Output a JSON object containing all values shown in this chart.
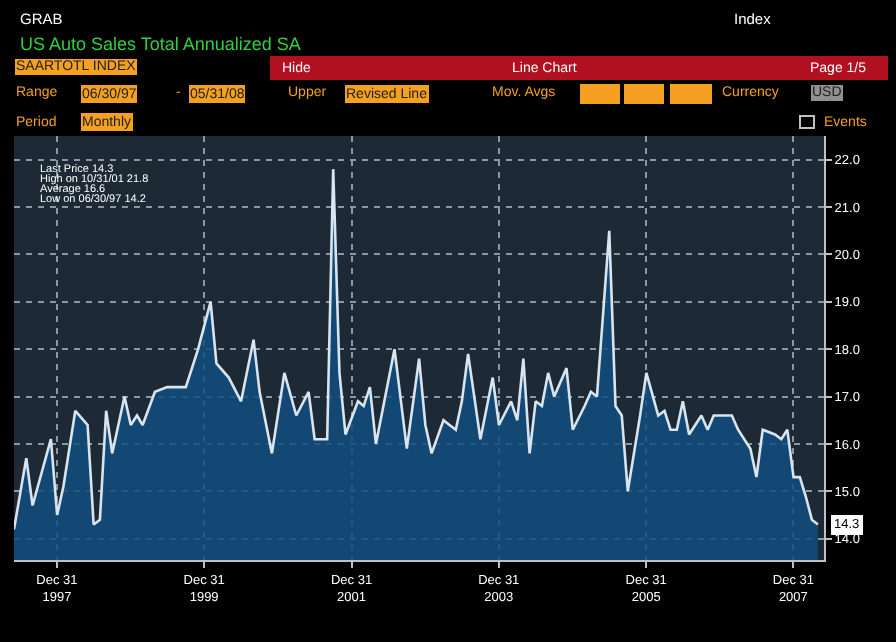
{
  "chart_data": {
    "type": "area",
    "title": "US Auto Sales Total Annualized SA",
    "x": [
      "1997-06",
      "1997-08",
      "1997-09",
      "1997-12",
      "1998-01",
      "1998-02",
      "1998-04",
      "1998-06",
      "1998-07",
      "1998-08",
      "1998-09",
      "1998-10",
      "1998-12",
      "1999-01",
      "1999-02",
      "1999-03",
      "1999-05",
      "1999-07",
      "1999-10",
      "1999-12",
      "2000-02",
      "2000-03",
      "2000-05",
      "2000-07",
      "2000-09",
      "2000-10",
      "2000-12",
      "2001-02",
      "2001-04",
      "2001-06",
      "2001-07",
      "2001-09",
      "2001-10",
      "2001-11",
      "2001-12",
      "2002-02",
      "2002-03",
      "2002-04",
      "2002-05",
      "2002-08",
      "2002-10",
      "2002-12",
      "2003-01",
      "2003-02",
      "2003-04",
      "2003-05",
      "2003-06",
      "2003-07",
      "2003-08",
      "2003-10",
      "2003-12",
      "2004-01",
      "2004-03",
      "2004-04",
      "2004-05",
      "2004-06",
      "2004-07",
      "2004-08",
      "2004-09",
      "2004-10",
      "2004-12",
      "2005-01",
      "2005-03",
      "2005-04",
      "2005-05",
      "2005-07",
      "2005-08",
      "2005-09",
      "2005-10",
      "2005-12",
      "2006-01",
      "2006-03",
      "2006-04",
      "2006-05",
      "2006-06",
      "2006-07",
      "2006-08",
      "2006-10",
      "2006-11",
      "2006-12",
      "2007-03",
      "2007-04",
      "2007-06",
      "2007-07",
      "2007-08",
      "2007-10",
      "2007-11",
      "2007-12",
      "2008-01",
      "2008-02",
      "2008-03",
      "2008-04",
      "2008-05"
    ],
    "series": [
      {
        "color": "#d8e4ee",
        "values": [
          14.2,
          15.7,
          14.7,
          16.1,
          14.5,
          15.1,
          16.7,
          16.4,
          14.3,
          14.4,
          16.7,
          15.8,
          17.0,
          16.4,
          16.6,
          16.4,
          17.1,
          17.2,
          17.2,
          18.0,
          19.0,
          17.7,
          17.4,
          16.9,
          18.2,
          17.1,
          15.8,
          17.5,
          16.6,
          17.1,
          16.1,
          16.1,
          21.8,
          17.5,
          16.2,
          16.9,
          16.8,
          17.2,
          16.0,
          18.0,
          15.9,
          17.8,
          16.4,
          15.8,
          16.5,
          16.4,
          16.3,
          16.9,
          17.9,
          16.1,
          17.4,
          16.4,
          16.9,
          16.5,
          17.8,
          15.8,
          16.9,
          16.8,
          17.5,
          17.0,
          17.6,
          16.3,
          16.8,
          17.1,
          17.0,
          20.5,
          16.8,
          16.6,
          15.0,
          16.6,
          17.5,
          16.6,
          16.7,
          16.3,
          16.3,
          16.9,
          16.2,
          16.6,
          16.3,
          16.6,
          16.6,
          16.3,
          15.9,
          15.3,
          16.3,
          16.2,
          16.1,
          16.3,
          15.3,
          15.3,
          14.9,
          14.4,
          14.3
        ]
      }
    ],
    "xlim": [
      "1997-06-01",
      "2008-05-31"
    ],
    "xticks": [
      {
        "value": "1997-12-31",
        "label": "Dec 31\n1997"
      },
      {
        "value": "1999-12-31",
        "label": "Dec 31\n1999"
      },
      {
        "value": "2001-12-31",
        "label": "Dec 31\n2001"
      },
      {
        "value": "2003-12-31",
        "label": "Dec 31\n2003"
      },
      {
        "value": "2005-12-31",
        "label": "Dec 31\n2005"
      },
      {
        "value": "2007-12-31",
        "label": "Dec 31\n2007"
      }
    ],
    "ylim": [
      13.55,
      22.5
    ],
    "yticks": [
      {
        "value": 14,
        "label": "14.0"
      },
      {
        "value": 15,
        "label": "15.0"
      },
      {
        "value": 16,
        "label": "16.0"
      },
      {
        "value": 17,
        "label": "17.0"
      },
      {
        "value": 18,
        "label": "18.0"
      },
      {
        "value": 19,
        "label": "19.0"
      },
      {
        "value": 20,
        "label": "20.0"
      },
      {
        "value": 21,
        "label": "21.0"
      },
      {
        "value": 22,
        "label": "22.0"
      }
    ],
    "grid": true,
    "annotations": [
      "GRAB",
      "Index",
      "SAARTOTL INDEX",
      "Hide",
      "Line Chart",
      "Page 1/5",
      "Range",
      "06/30/97",
      "-",
      "05/31/08",
      "Upper",
      "Revised Line",
      "Mov. Avgs",
      "Currency",
      "USD",
      "Period",
      "Monthly",
      "Events",
      "Last Price 14.3",
      "High on 10/31/01 21.8",
      "Average 16.6",
      "Low on 06/30/97 14.2",
      {
        "text": "14.3",
        "x": "2008-05",
        "y": 14.3
      }
    ]
  }
}
